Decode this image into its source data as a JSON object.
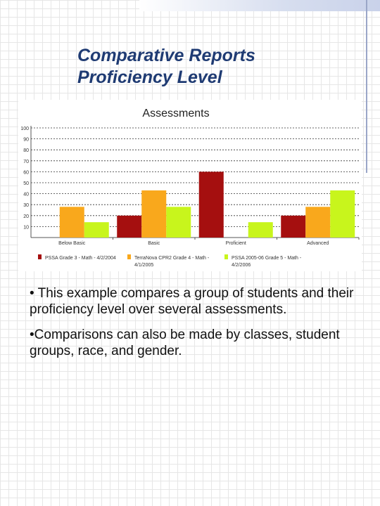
{
  "slide": {
    "title_line1": "Comparative Reports",
    "title_line2": "Proficiency Level",
    "bullets": [
      "• This example compares a group of students and their proficiency level over several assessments.",
      "•Comparisons can also be made by classes, student groups, race, and gender."
    ]
  },
  "chart_data": {
    "type": "bar",
    "title": "Assessments",
    "categories": [
      "Below Basic",
      "Basic",
      "Proficient",
      "Advanced"
    ],
    "series": [
      {
        "name": "PSSA Grade 3 - Math - 4/2/2004",
        "color": "#a50f0f",
        "values": [
          0,
          20,
          60,
          20
        ]
      },
      {
        "name": "TerraNova CPR2 Grade 4 - Math - 4/1/2005",
        "color": "#f9a81c",
        "values": [
          28,
          43,
          0,
          28
        ]
      },
      {
        "name": "PSSA 2005-06 Grade 5 - Math - 4/2/2006",
        "color": "#c8f51c",
        "values": [
          14,
          28,
          14,
          43
        ]
      }
    ],
    "yticks": [
      "100",
      "90",
      "80",
      "70",
      "60",
      "50",
      "40",
      "30",
      "20",
      "10"
    ],
    "ylim": [
      0,
      100
    ],
    "grid": true,
    "legend_position": "bottom",
    "legend_labels": [
      [
        "PSSA Grade 3 - Math - 4/2/2004"
      ],
      [
        "TerraNova CPR2 Grade 4 - Math -",
        "4/1/2005"
      ],
      [
        "PSSA 2005-06 Grade 5 - Math -",
        "4/2/2006"
      ]
    ]
  }
}
